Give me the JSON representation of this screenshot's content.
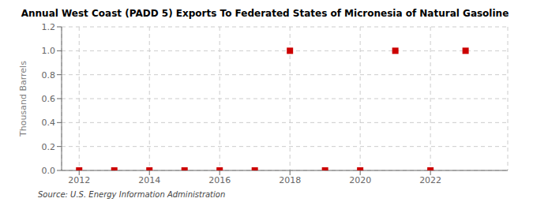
{
  "chart_data": {
    "type": "scatter",
    "title": "Annual West Coast (PADD 5) Exports To Federated States of Micronesia of Natural Gasoline",
    "ylabel": "Thousand Barrels",
    "source": "Source: U.S. Energy Information Administration",
    "x": [
      2012,
      2013,
      2014,
      2015,
      2016,
      2017,
      2018,
      2019,
      2020,
      2021,
      2022,
      2023
    ],
    "values": [
      0,
      0,
      0,
      0,
      0,
      0,
      1,
      0,
      0,
      1,
      0,
      1
    ],
    "color": "#cc0000",
    "marker": "square",
    "xlim": [
      2011.5,
      2024.2
    ],
    "xticks": [
      2012,
      2014,
      2016,
      2018,
      2020,
      2022
    ],
    "ylim": [
      0.0,
      1.2
    ],
    "yticks": [
      {
        "value": 0.0,
        "label": "0.0"
      },
      0.2,
      0.4,
      0.6,
      0.8,
      {
        "value": 1.0,
        "label": "1.0"
      },
      1.2
    ],
    "grid": true
  }
}
